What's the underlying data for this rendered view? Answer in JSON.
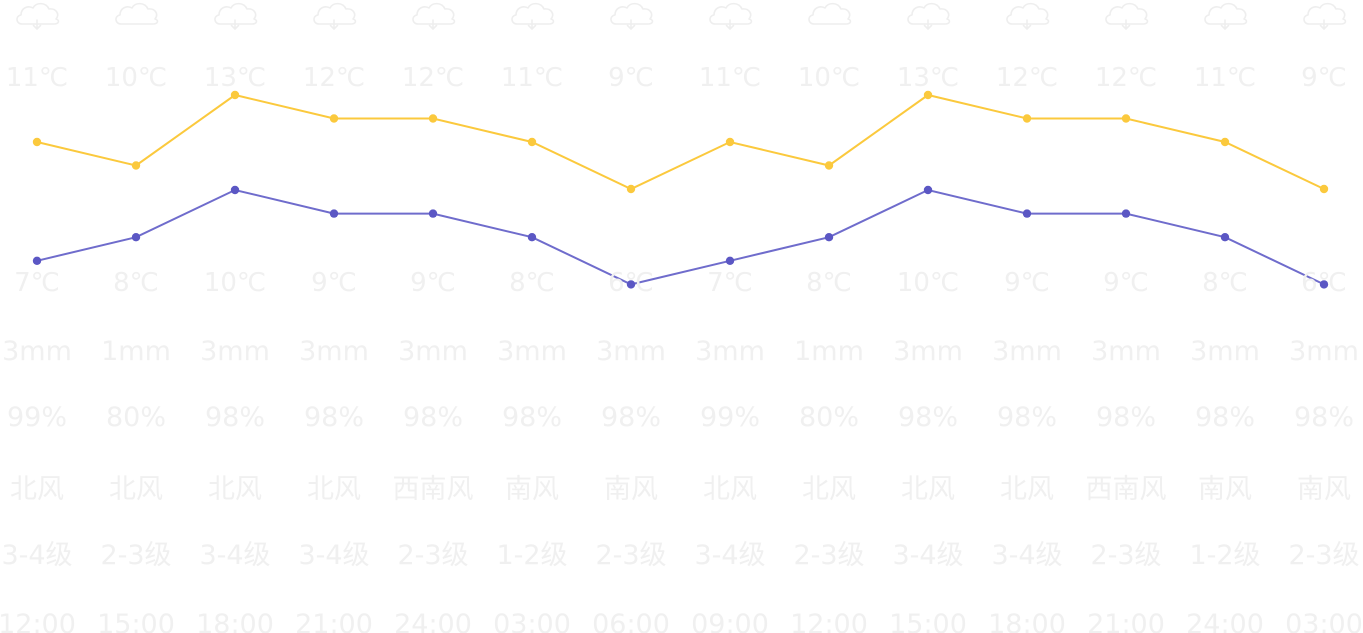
{
  "colors": {
    "high_line": "#fbc93d",
    "low_line": "#6f6ccc",
    "low_point": "#5b57c4",
    "faint_text": "#f0f0f0",
    "icon": "#eeeeee"
  },
  "chart_data": {
    "type": "line",
    "categories": [
      "12:00",
      "15:00",
      "18:00",
      "21:00",
      "24:00",
      "03:00",
      "06:00",
      "09:00",
      "12:00",
      "15:00",
      "18:00",
      "21:00",
      "24:00",
      "03:00"
    ],
    "series": [
      {
        "values": [
          11,
          10,
          13,
          12,
          12,
          11,
          9,
          11,
          10,
          13,
          12,
          12,
          11,
          9
        ],
        "labels": [
          "11℃",
          "10℃",
          "13℃",
          "12℃",
          "12℃",
          "11℃",
          "9℃",
          "11℃",
          "10℃",
          "13℃",
          "12℃",
          "12℃",
          "11℃",
          "9℃"
        ]
      },
      {
        "values": [
          7,
          8,
          10,
          9,
          9,
          8,
          6,
          7,
          8,
          10,
          9,
          9,
          8,
          6
        ],
        "labels": [
          "7℃",
          "8℃",
          "10℃",
          "9℃",
          "9℃",
          "8℃",
          "6℃",
          "7℃",
          "8℃",
          "10℃",
          "9℃",
          "9℃",
          "8℃",
          "6℃"
        ]
      }
    ],
    "weather_icons": [
      "cloud-rain-icon",
      "cloud-icon",
      "cloud-rain-icon",
      "cloud-rain-icon",
      "cloud-rain-icon",
      "cloud-rain-icon",
      "cloud-rain-icon",
      "cloud-rain-icon",
      "cloud-icon",
      "cloud-rain-icon",
      "cloud-rain-icon",
      "cloud-rain-icon",
      "cloud-rain-icon",
      "cloud-rain-icon"
    ],
    "precipitation": [
      "3mm",
      "1mm",
      "3mm",
      "3mm",
      "3mm",
      "3mm",
      "3mm",
      "3mm",
      "1mm",
      "3mm",
      "3mm",
      "3mm",
      "3mm",
      "3mm"
    ],
    "humidity": [
      "99%",
      "80%",
      "98%",
      "98%",
      "98%",
      "98%",
      "98%",
      "99%",
      "80%",
      "98%",
      "98%",
      "98%",
      "98%",
      "98%"
    ],
    "wind_direction": [
      "北风",
      "北风",
      "北风",
      "北风",
      "西南风",
      "南风",
      "南风",
      "北风",
      "北风",
      "北风",
      "北风",
      "西南风",
      "南风",
      "南风"
    ],
    "wind_level": [
      "3-4级",
      "2-3级",
      "3-4级",
      "3-4级",
      "2-3级",
      "1-2级",
      "2-3级",
      "3-4级",
      "2-3级",
      "3-4级",
      "3-4级",
      "2-3级",
      "1-2级",
      "2-3级"
    ],
    "grid": false
  }
}
